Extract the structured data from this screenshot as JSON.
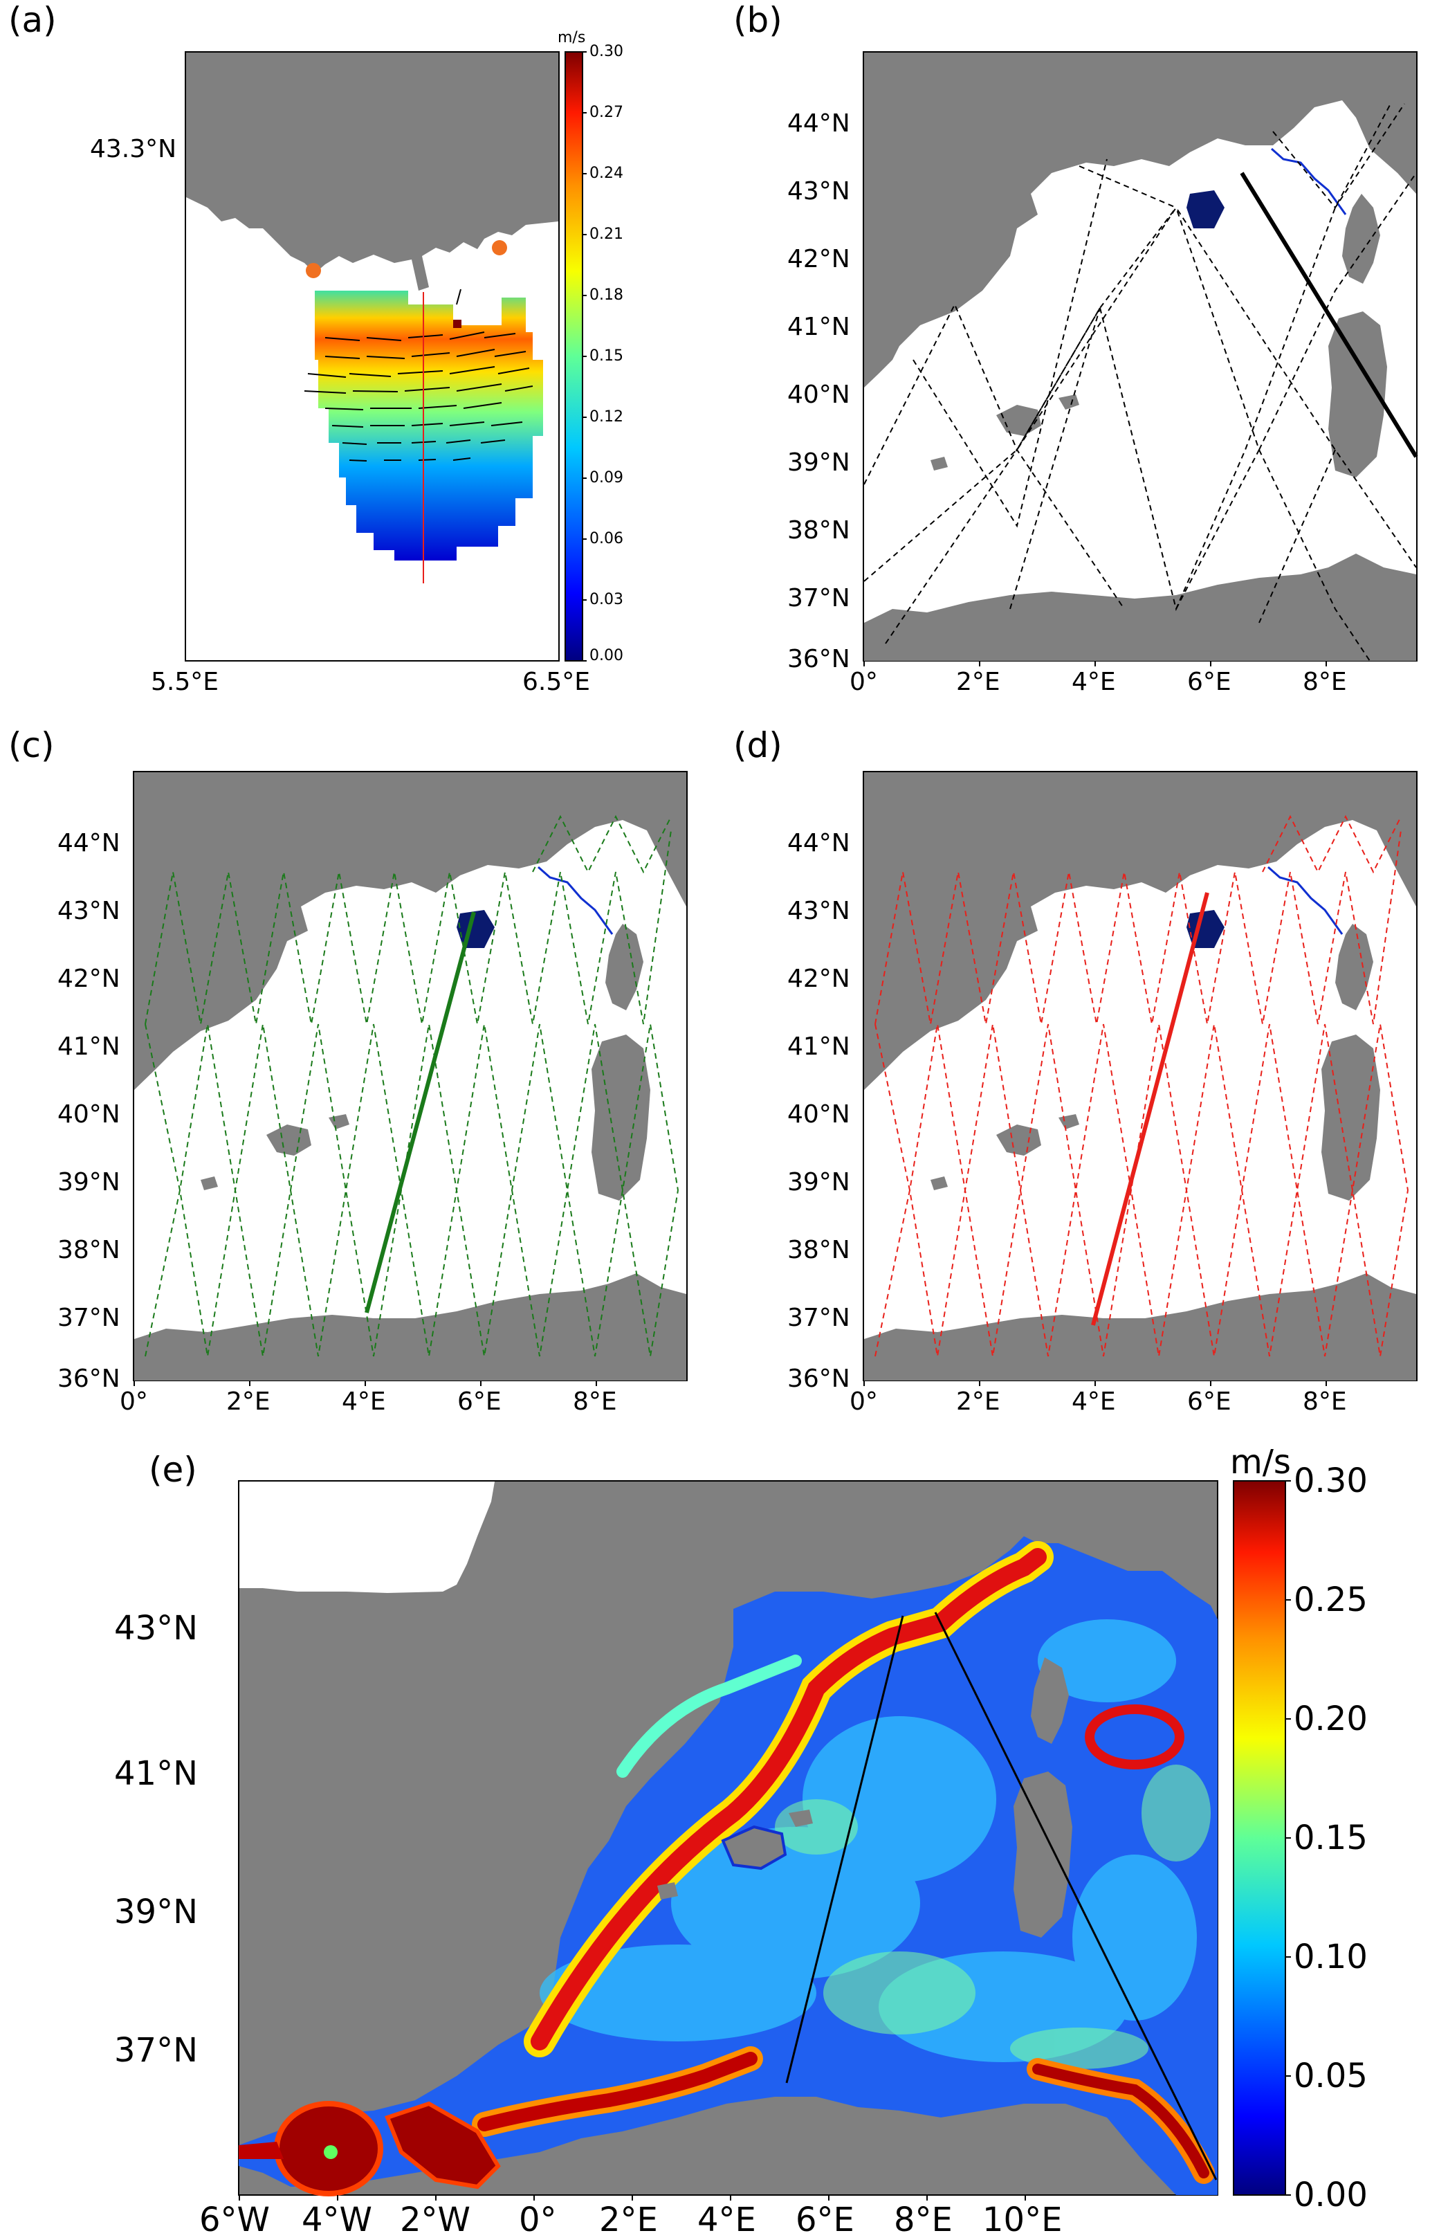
{
  "panels": {
    "a": {
      "letter": "(a)",
      "lat_label": "43.3°N",
      "lon_labels": [
        "5.5°E",
        "6.5°E"
      ],
      "colorbar": {
        "unit": "m/s",
        "ticks": [
          "0.30",
          "0.27",
          "0.24",
          "0.21",
          "0.18",
          "0.15",
          "0.12",
          "0.09",
          "0.06",
          "0.03",
          "0.00"
        ]
      }
    },
    "b": {
      "letter": "(b)",
      "lat_labels": [
        "44°N",
        "43°N",
        "42°N",
        "41°N",
        "40°N",
        "39°N",
        "38°N",
        "37°N",
        "36°N"
      ],
      "lon_labels": [
        "0°",
        "2°E",
        "4°E",
        "6°E",
        "8°E"
      ],
      "track_color": "#000000"
    },
    "c": {
      "letter": "(c)",
      "lat_labels": [
        "44°N",
        "43°N",
        "42°N",
        "41°N",
        "40°N",
        "39°N",
        "38°N",
        "37°N",
        "36°N"
      ],
      "lon_labels": [
        "0°",
        "2°E",
        "4°E",
        "6°E",
        "8°E"
      ],
      "track_color": "#1a7a1a"
    },
    "d": {
      "letter": "(d)",
      "lat_labels": [
        "44°N",
        "43°N",
        "42°N",
        "41°N",
        "40°N",
        "39°N",
        "38°N",
        "37°N",
        "36°N"
      ],
      "lon_labels": [
        "0°",
        "2°E",
        "4°E",
        "6°E",
        "8°E"
      ],
      "track_color": "#e8201a"
    },
    "e": {
      "letter": "(e)",
      "lat_labels": [
        "43°N",
        "41°N",
        "39°N",
        "37°N"
      ],
      "lon_labels": [
        "6°W",
        "4°W",
        "2°W",
        "0°",
        "2°E",
        "4°E",
        "6°E",
        "8°E",
        "10°E"
      ],
      "colorbar": {
        "unit": "m/s",
        "ticks": [
          "0.30",
          "0.25",
          "0.20",
          "0.15",
          "0.10",
          "0.05",
          "0.00"
        ]
      }
    }
  },
  "colors": {
    "land": "#808080",
    "sea": "#ffffff",
    "glider_track": "#1030d0",
    "eddy": "#0a1a6e",
    "hf_radar_sites": "#f07020"
  }
}
